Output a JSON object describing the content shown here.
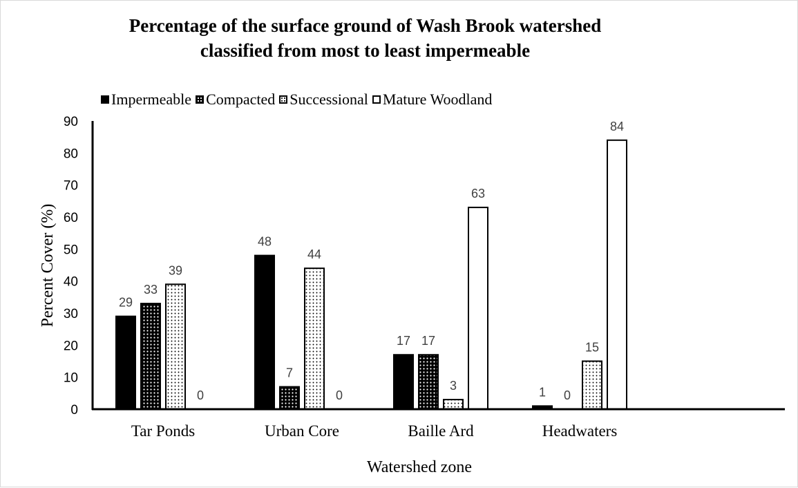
{
  "chart_data": {
    "type": "bar",
    "title_line1": "Percentage of the surface ground of Wash Brook watershed",
    "title_line2": "classified from most to least impermeable",
    "xlabel": "Watershed zone",
    "ylabel": "Percent Cover (%)",
    "ylim": [
      0,
      90
    ],
    "yticks": [
      "0",
      "10",
      "20",
      "30",
      "40",
      "50",
      "60",
      "70",
      "80",
      "90"
    ],
    "categories": [
      "Tar Ponds",
      "Urban Core",
      "Baille Ard",
      "Headwaters"
    ],
    "series": [
      {
        "name": "Impermeable",
        "values": [
          29,
          48,
          17,
          1
        ],
        "pattern": "solid"
      },
      {
        "name": "Compacted",
        "values": [
          33,
          7,
          17,
          0
        ],
        "pattern": "dark-dots"
      },
      {
        "name": "Successional",
        "values": [
          39,
          44,
          3,
          15
        ],
        "pattern": "light-dots"
      },
      {
        "name": "Mature Woodland",
        "values": [
          0,
          0,
          63,
          84
        ],
        "pattern": "hollow"
      }
    ],
    "legend_position": "top-left",
    "grid": false,
    "colors": {
      "bar": "#000000",
      "background": "#ffffff"
    }
  }
}
